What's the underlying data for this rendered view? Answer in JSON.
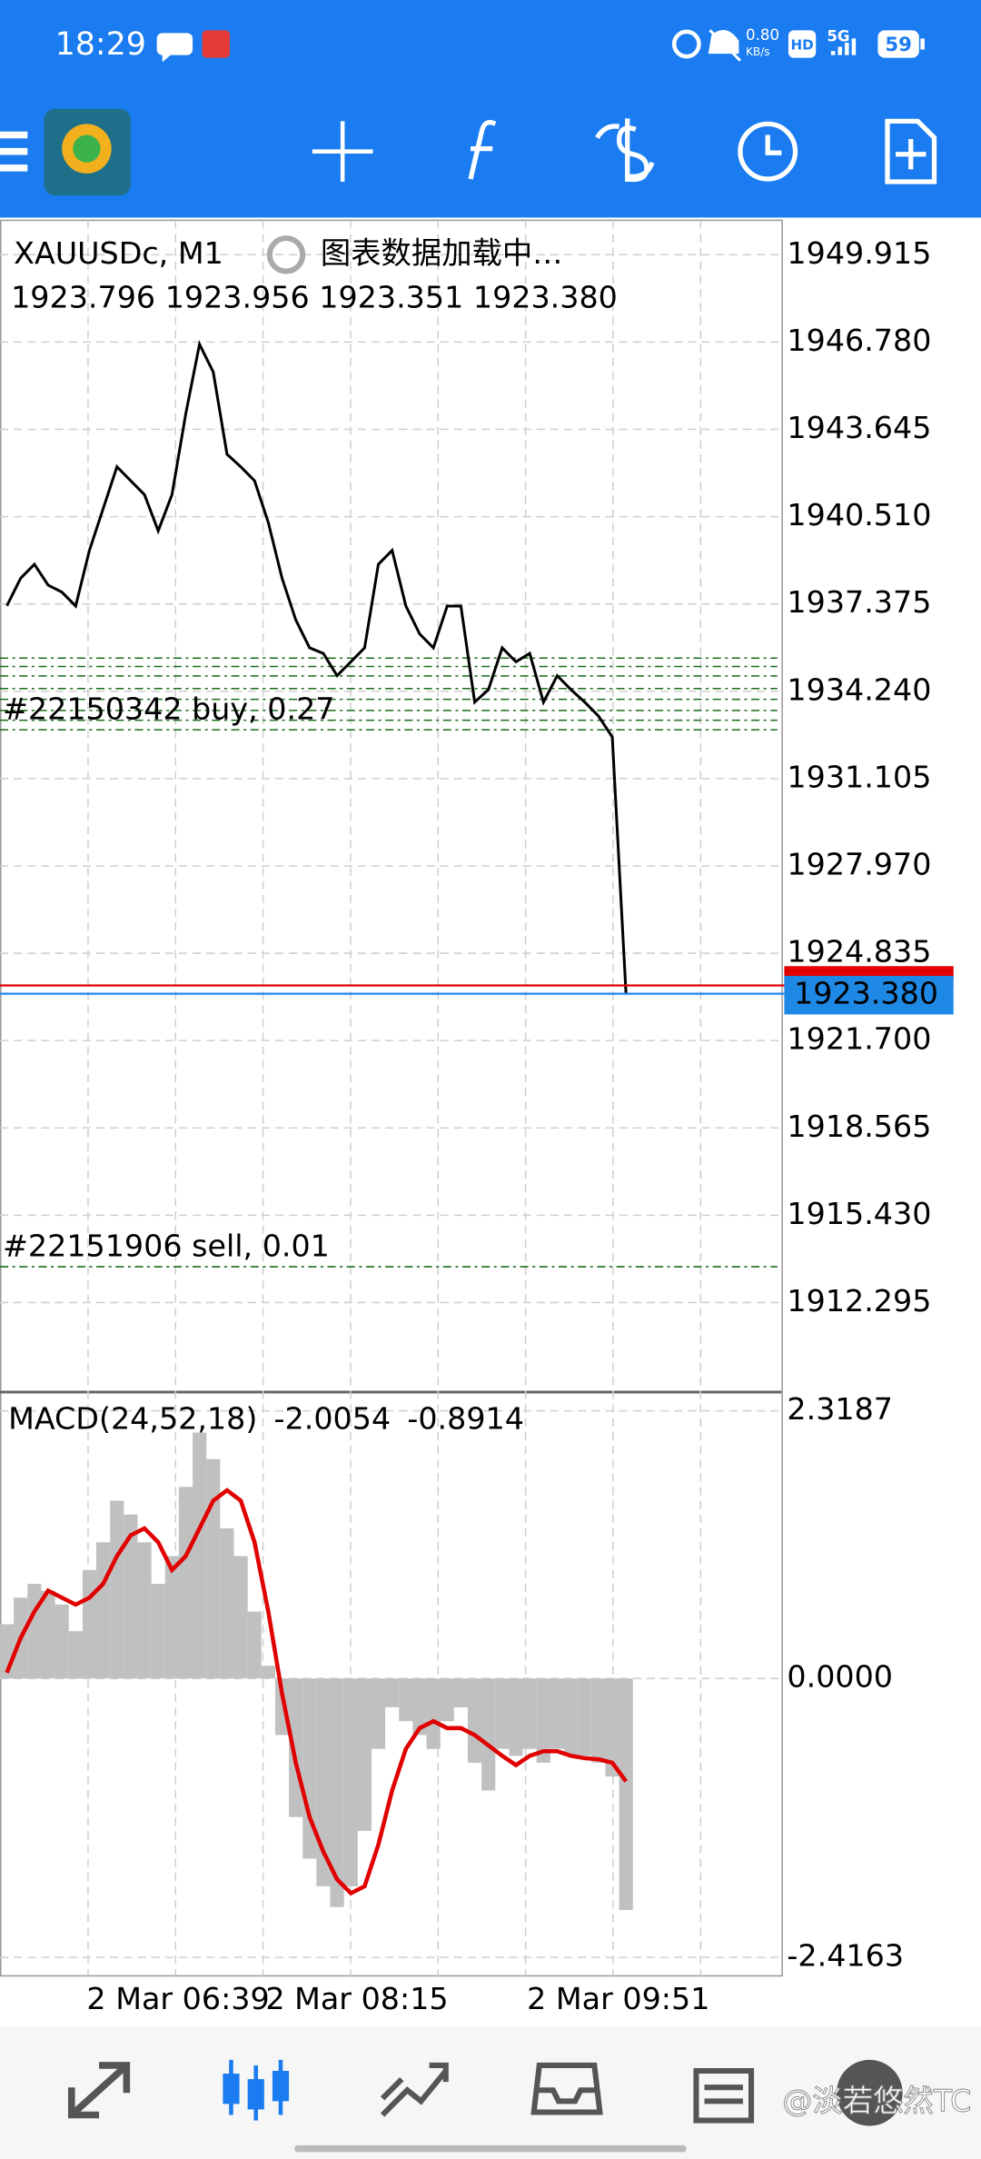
{
  "status_bar": {
    "time": "18:29",
    "net_speed": "0.80",
    "net_unit": "KB/s",
    "hd": "HD",
    "network": "5G",
    "battery": "59"
  },
  "chart_data": [
    {
      "type": "line",
      "title": "XAUUSDc, M1",
      "subtitle": "图表数据加载中…",
      "ohlc": "1923.796 1923.956 1923.351 1923.380",
      "categories": [
        null,
        null,
        null,
        null,
        null,
        null,
        "2 Mar 06:39",
        null,
        null,
        null,
        null,
        null,
        null,
        null,
        null,
        null,
        null,
        null,
        null,
        "2 Mar 08:15",
        null,
        null,
        null,
        null,
        null,
        null,
        null,
        null,
        null,
        null,
        null,
        null,
        null,
        null,
        null,
        null,
        null,
        null,
        "2 Mar 09:51",
        null,
        null,
        null,
        null,
        null,
        null,
        null
      ],
      "values": [
        1937.31,
        1938.3,
        1938.8,
        1938.05,
        1937.8,
        1937.3,
        1939.3,
        1940.8,
        1942.3,
        1941.8,
        1941.3,
        1940.0,
        1941.3,
        1944.2,
        1946.7,
        1945.7,
        1942.75,
        1942.3,
        1941.8,
        1940.3,
        1938.3,
        1936.8,
        1935.8,
        1935.6,
        1934.8,
        1935.3,
        1935.8,
        1938.8,
        1939.3,
        1937.3,
        1936.3,
        1935.8,
        1937.3,
        1937.3,
        1933.85,
        1934.3,
        1935.8,
        1935.3,
        1935.6,
        1933.85,
        1934.8,
        1934.3,
        1933.85,
        1933.35,
        1932.6,
        1923.38
      ],
      "color": "#000000",
      "ylim": [
        1909.13,
        1951.15
      ],
      "yticks": [
        1949.915,
        {
          "value": 1946.78,
          "label": "1946.780"
        },
        1943.645,
        {
          "value": 1940.51,
          "label": "1940.510"
        },
        1937.375,
        {
          "value": 1934.24,
          "label": "1934.240"
        },
        1931.105,
        {
          "value": 1927.97,
          "label": "1927.970"
        },
        1924.835,
        {
          "value": 1921.7,
          "label": "1921.700"
        },
        1918.565,
        {
          "value": 1915.43,
          "label": "1915.430"
        },
        1912.295
      ],
      "grid": true,
      "bid": {
        "value": 1923.38,
        "label": "1923.380",
        "color": "#1e88e5"
      },
      "ask": {
        "value": 1923.68,
        "color": "#e00000"
      },
      "orders": [
        {
          "label": "#22150342 buy, 0.27",
          "value": 1932.86
        },
        {
          "label": "#22151906 sell, 0.01",
          "value": 1913.58
        }
      ],
      "order_levels": [
        1935.43,
        1935.13,
        1934.79,
        1934.34,
        1933.95,
        1933.55,
        1933.2
      ],
      "order_color": "#1a6b1a"
    },
    {
      "type": "bar",
      "title": "MACD(24,52,18)",
      "macd": -2.0054,
      "signal": -0.8914,
      "values": [
        0.47,
        0.7,
        0.82,
        0.76,
        0.64,
        0.41,
        0.94,
        1.18,
        1.54,
        1.42,
        1.18,
        0.82,
        1.06,
        1.66,
        2.13,
        1.9,
        1.3,
        1.06,
        0.58,
        0.11,
        -0.49,
        -1.2,
        -1.56,
        -1.8,
        -1.98,
        -1.8,
        -1.32,
        -0.61,
        -0.25,
        -0.37,
        -0.49,
        -0.61,
        -0.37,
        -0.25,
        -0.73,
        -0.97,
        -0.61,
        -0.67,
        -0.61,
        -0.73,
        -0.61,
        -0.67,
        -0.67,
        -0.73,
        -0.85,
        -2.0054
      ],
      "color": "#c0c0c0",
      "signal_line": {
        "color": "#e00000",
        "values": [
          0.05,
          0.35,
          0.58,
          0.76,
          0.7,
          0.64,
          0.7,
          0.82,
          1.06,
          1.24,
          1.3,
          1.18,
          0.94,
          1.06,
          1.3,
          1.54,
          1.63,
          1.54,
          1.18,
          0.58,
          -0.13,
          -0.73,
          -1.2,
          -1.5,
          -1.74,
          -1.86,
          -1.8,
          -1.44,
          -0.97,
          -0.61,
          -0.43,
          -0.37,
          -0.43,
          -0.43,
          -0.49,
          -0.58,
          -0.67,
          -0.75,
          -0.67,
          -0.63,
          -0.63,
          -0.67,
          -0.69,
          -0.7,
          -0.73,
          -0.8914
        ]
      },
      "ylim": [
        -2.576,
        2.469
      ],
      "yticks": [
        2.3187,
        {
          "value": 0,
          "label": "0.0000"
        },
        -2.4163
      ]
    }
  ],
  "watermark": "@淡若悠然TC"
}
